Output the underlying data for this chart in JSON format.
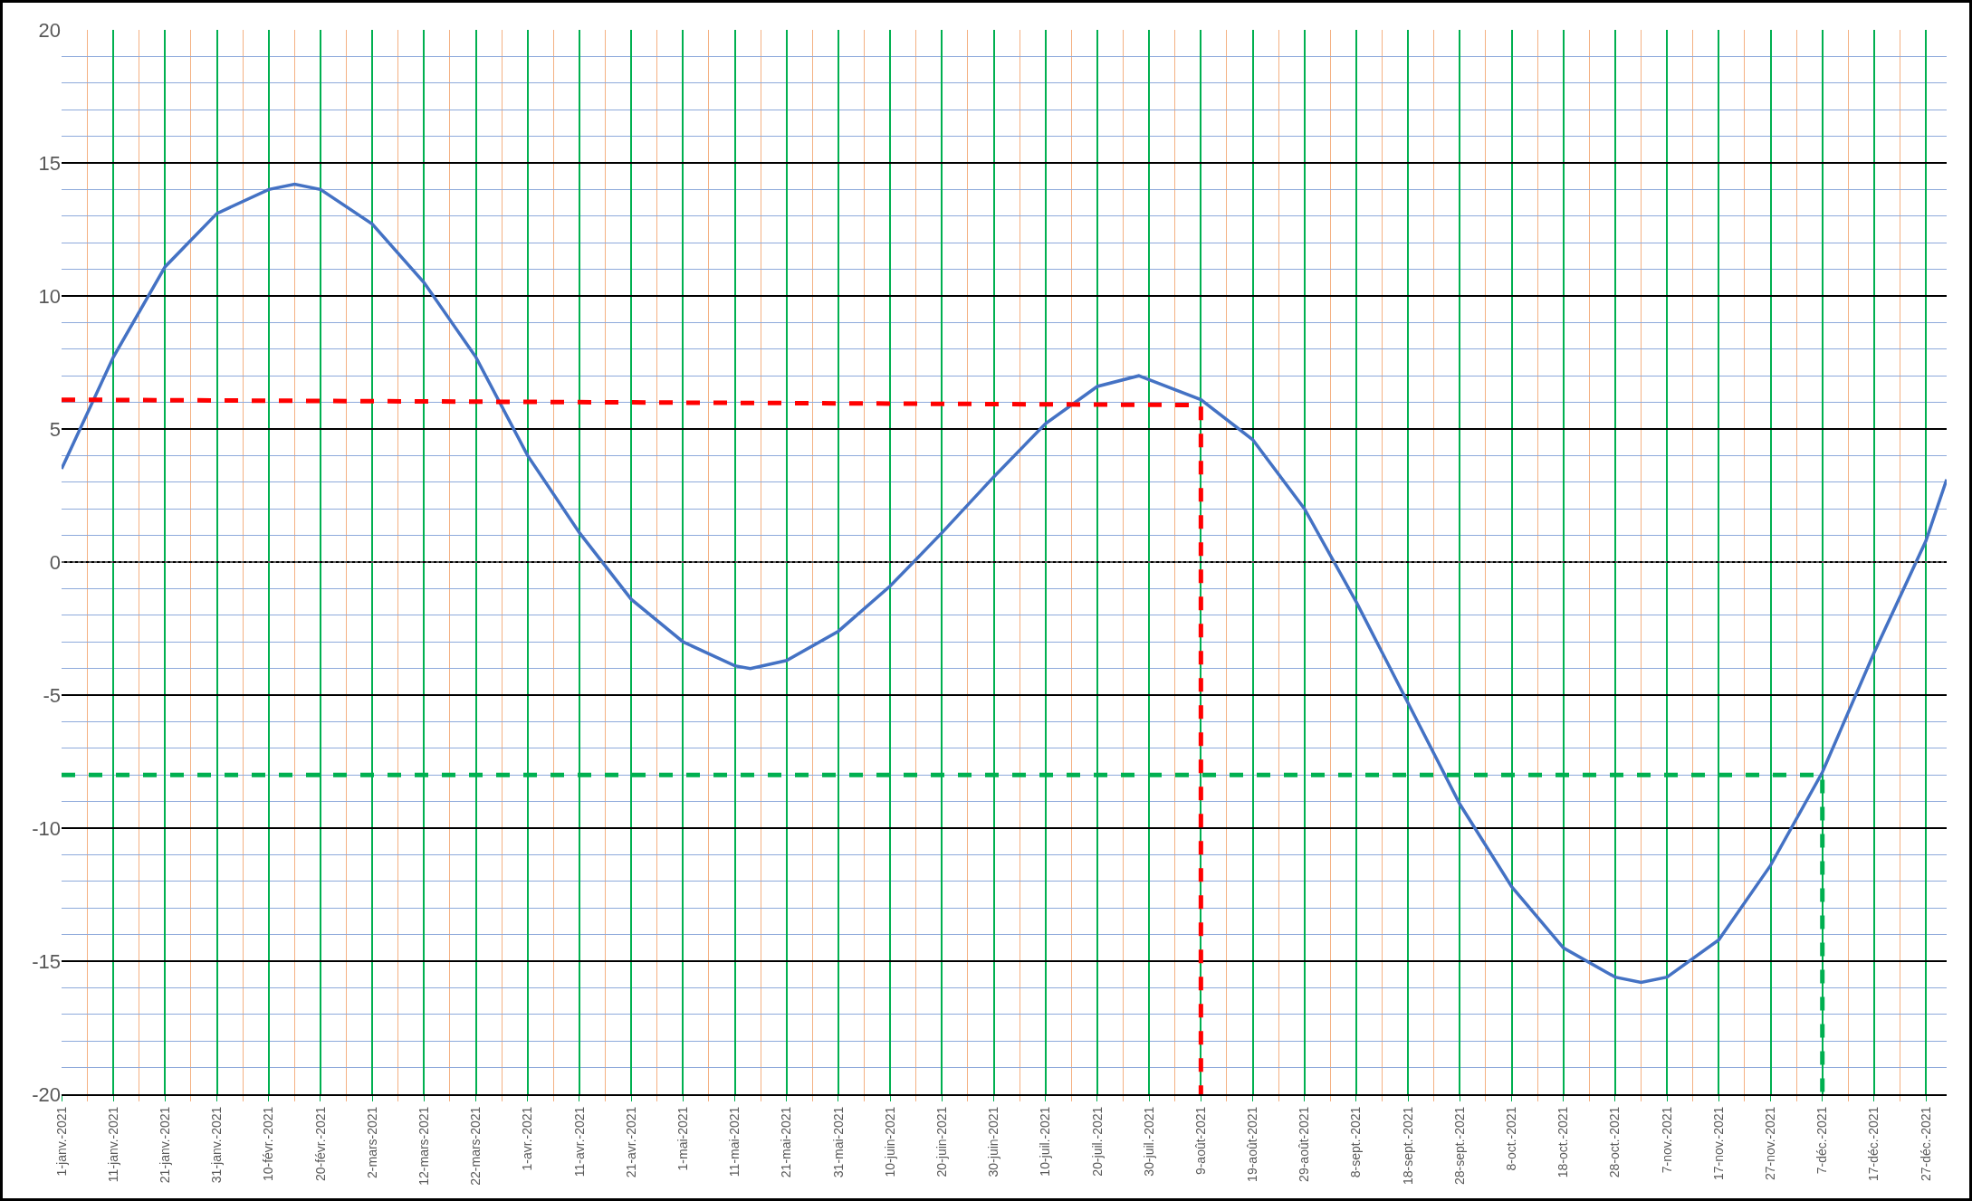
{
  "chart_data": {
    "type": "line",
    "xlim": [
      "2021-01-01",
      "2021-12-31"
    ],
    "ylim": [
      -20,
      20
    ],
    "yticks": [
      -20,
      {
        "value": -19,
        "label": null
      },
      {
        "value": -18,
        "label": null
      },
      {
        "value": -17,
        "label": null
      },
      {
        "value": -16,
        "label": null
      },
      -15,
      {
        "value": -14,
        "label": null
      },
      {
        "value": -13,
        "label": null
      },
      {
        "value": -12,
        "label": null
      },
      {
        "value": -11,
        "label": null
      },
      -10,
      {
        "value": -9,
        "label": null
      },
      {
        "value": -8,
        "label": null
      },
      {
        "value": -7,
        "label": null
      },
      {
        "value": -6,
        "label": null
      },
      -5,
      {
        "value": -4,
        "label": null
      },
      {
        "value": -3,
        "label": null
      },
      {
        "value": -2,
        "label": null
      },
      {
        "value": -1,
        "label": null
      },
      0,
      {
        "value": 1,
        "label": null
      },
      {
        "value": 2,
        "label": null
      },
      {
        "value": 3,
        "label": null
      },
      {
        "value": 4,
        "label": null
      },
      5,
      {
        "value": 6,
        "label": null
      },
      {
        "value": 7,
        "label": null
      },
      {
        "value": 8,
        "label": null
      },
      {
        "value": 9,
        "label": null
      },
      10,
      {
        "value": 11,
        "label": null
      },
      {
        "value": 12,
        "label": null
      },
      {
        "value": 13,
        "label": null
      },
      {
        "value": 14,
        "label": null
      },
      15,
      {
        "value": 16,
        "label": null
      },
      {
        "value": 17,
        "label": null
      },
      {
        "value": 18,
        "label": null
      },
      {
        "value": 19,
        "label": null
      },
      20
    ],
    "xticks": [
      {
        "value": "2021-01-01",
        "label": "1-janv.-2021"
      },
      {
        "value": "2021-01-06",
        "label": null
      },
      {
        "value": "2021-01-11",
        "label": "11-janv.-2021"
      },
      {
        "value": "2021-01-16",
        "label": null
      },
      {
        "value": "2021-01-21",
        "label": "21-janv.-2021"
      },
      {
        "value": "2021-01-26",
        "label": null
      },
      {
        "value": "2021-01-31",
        "label": "31-janv.-2021"
      },
      {
        "value": "2021-02-05",
        "label": null
      },
      {
        "value": "2021-02-10",
        "label": "10-févr.-2021"
      },
      {
        "value": "2021-02-15",
        "label": null
      },
      {
        "value": "2021-02-20",
        "label": "20-févr.-2021"
      },
      {
        "value": "2021-02-25",
        "label": null
      },
      {
        "value": "2021-03-02",
        "label": "2-mars-2021"
      },
      {
        "value": "2021-03-07",
        "label": null
      },
      {
        "value": "2021-03-12",
        "label": "12-mars-2021"
      },
      {
        "value": "2021-03-17",
        "label": null
      },
      {
        "value": "2021-03-22",
        "label": "22-mars-2021"
      },
      {
        "value": "2021-03-27",
        "label": null
      },
      {
        "value": "2021-04-01",
        "label": "1-avr.-2021"
      },
      {
        "value": "2021-04-06",
        "label": null
      },
      {
        "value": "2021-04-11",
        "label": "11-avr.-2021"
      },
      {
        "value": "2021-04-16",
        "label": null
      },
      {
        "value": "2021-04-21",
        "label": "21-avr.-2021"
      },
      {
        "value": "2021-04-26",
        "label": null
      },
      {
        "value": "2021-05-01",
        "label": "1-mai-2021"
      },
      {
        "value": "2021-05-06",
        "label": null
      },
      {
        "value": "2021-05-11",
        "label": "11-mai-2021"
      },
      {
        "value": "2021-05-16",
        "label": null
      },
      {
        "value": "2021-05-21",
        "label": "21-mai-2021"
      },
      {
        "value": "2021-05-26",
        "label": null
      },
      {
        "value": "2021-05-31",
        "label": "31-mai-2021"
      },
      {
        "value": "2021-06-05",
        "label": null
      },
      {
        "value": "2021-06-10",
        "label": "10-juin-2021"
      },
      {
        "value": "2021-06-15",
        "label": null
      },
      {
        "value": "2021-06-20",
        "label": "20-juin-2021"
      },
      {
        "value": "2021-06-25",
        "label": null
      },
      {
        "value": "2021-06-30",
        "label": "30-juin-2021"
      },
      {
        "value": "2021-07-05",
        "label": null
      },
      {
        "value": "2021-07-10",
        "label": "10-juil.-2021"
      },
      {
        "value": "2021-07-15",
        "label": null
      },
      {
        "value": "2021-07-20",
        "label": "20-juil.-2021"
      },
      {
        "value": "2021-07-25",
        "label": null
      },
      {
        "value": "2021-07-30",
        "label": "30-juil.-2021"
      },
      {
        "value": "2021-08-04",
        "label": null
      },
      {
        "value": "2021-08-09",
        "label": "9-août-2021"
      },
      {
        "value": "2021-08-14",
        "label": null
      },
      {
        "value": "2021-08-19",
        "label": "19-août-2021"
      },
      {
        "value": "2021-08-24",
        "label": null
      },
      {
        "value": "2021-08-29",
        "label": "29-août-2021"
      },
      {
        "value": "2021-09-03",
        "label": null
      },
      {
        "value": "2021-09-08",
        "label": "8-sept.-2021"
      },
      {
        "value": "2021-09-13",
        "label": null
      },
      {
        "value": "2021-09-18",
        "label": "18-sept.-2021"
      },
      {
        "value": "2021-09-23",
        "label": null
      },
      {
        "value": "2021-09-28",
        "label": "28-sept.-2021"
      },
      {
        "value": "2021-10-03",
        "label": null
      },
      {
        "value": "2021-10-08",
        "label": "8-oct.-2021"
      },
      {
        "value": "2021-10-13",
        "label": null
      },
      {
        "value": "2021-10-18",
        "label": "18-oct.-2021"
      },
      {
        "value": "2021-10-23",
        "label": null
      },
      {
        "value": "2021-10-28",
        "label": "28-oct.-2021"
      },
      {
        "value": "2021-11-02",
        "label": null
      },
      {
        "value": "2021-11-07",
        "label": "7-nov.-2021"
      },
      {
        "value": "2021-11-12",
        "label": null
      },
      {
        "value": "2021-11-17",
        "label": "17-nov.-2021"
      },
      {
        "value": "2021-11-22",
        "label": null
      },
      {
        "value": "2021-11-27",
        "label": "27-nov.-2021"
      },
      {
        "value": "2021-12-02",
        "label": null
      },
      {
        "value": "2021-12-07",
        "label": "7-déc.-2021"
      },
      {
        "value": "2021-12-12",
        "label": null
      },
      {
        "value": "2021-12-17",
        "label": "17-déc.-2021"
      },
      {
        "value": "2021-12-22",
        "label": null
      },
      {
        "value": "2021-12-27",
        "label": "27-déc.-2021"
      }
    ],
    "grid": true,
    "series": [
      {
        "color": "#4472c4",
        "line_style": "solid",
        "x": [
          "2021-01-01",
          "2021-01-11",
          "2021-01-21",
          "2021-01-31",
          "2021-02-10",
          "2021-02-15",
          "2021-02-20",
          "2021-03-02",
          "2021-03-12",
          "2021-03-22",
          "2021-04-01",
          "2021-04-11",
          "2021-04-21",
          "2021-05-01",
          "2021-05-11",
          "2021-05-14",
          "2021-05-21",
          "2021-05-31",
          "2021-06-10",
          "2021-06-20",
          "2021-06-30",
          "2021-07-10",
          "2021-07-20",
          "2021-07-28",
          "2021-08-09",
          "2021-08-19",
          "2021-08-29",
          "2021-09-08",
          "2021-09-18",
          "2021-09-28",
          "2021-10-08",
          "2021-10-18",
          "2021-10-28",
          "2021-11-02",
          "2021-11-07",
          "2021-11-17",
          "2021-11-27",
          "2021-12-07",
          "2021-12-17",
          "2021-12-27",
          "2021-12-31"
        ],
        "values": [
          3.5,
          7.7,
          11.1,
          13.1,
          14.0,
          14.2,
          14.0,
          12.7,
          10.5,
          7.7,
          4.0,
          1.1,
          -1.4,
          -3.0,
          -3.9,
          -4.0,
          -3.7,
          -2.6,
          -0.9,
          1.1,
          3.2,
          5.2,
          6.6,
          7.0,
          6.1,
          4.6,
          2.0,
          -1.5,
          -5.3,
          -9.1,
          -12.2,
          -14.5,
          -15.6,
          -15.8,
          -15.6,
          -14.2,
          -11.4,
          -7.9,
          -3.4,
          0.8,
          3.1
        ]
      },
      {
        "color": "#ff0000",
        "line_style": "dashed",
        "x": [
          "2021-01-01",
          "2021-08-09",
          "2021-08-09"
        ],
        "values": [
          6.1,
          5.9,
          -20
        ]
      },
      {
        "color": "#00b050",
        "line_style": "dashed",
        "x": [
          "2021-01-01",
          "2021-12-07",
          "2021-12-07"
        ],
        "values": [
          -8,
          -8,
          -20
        ]
      }
    ],
    "ref_lines": [
      {
        "axis": "y",
        "value": 0,
        "color": "#808080",
        "line_style": "dotted"
      }
    ]
  }
}
